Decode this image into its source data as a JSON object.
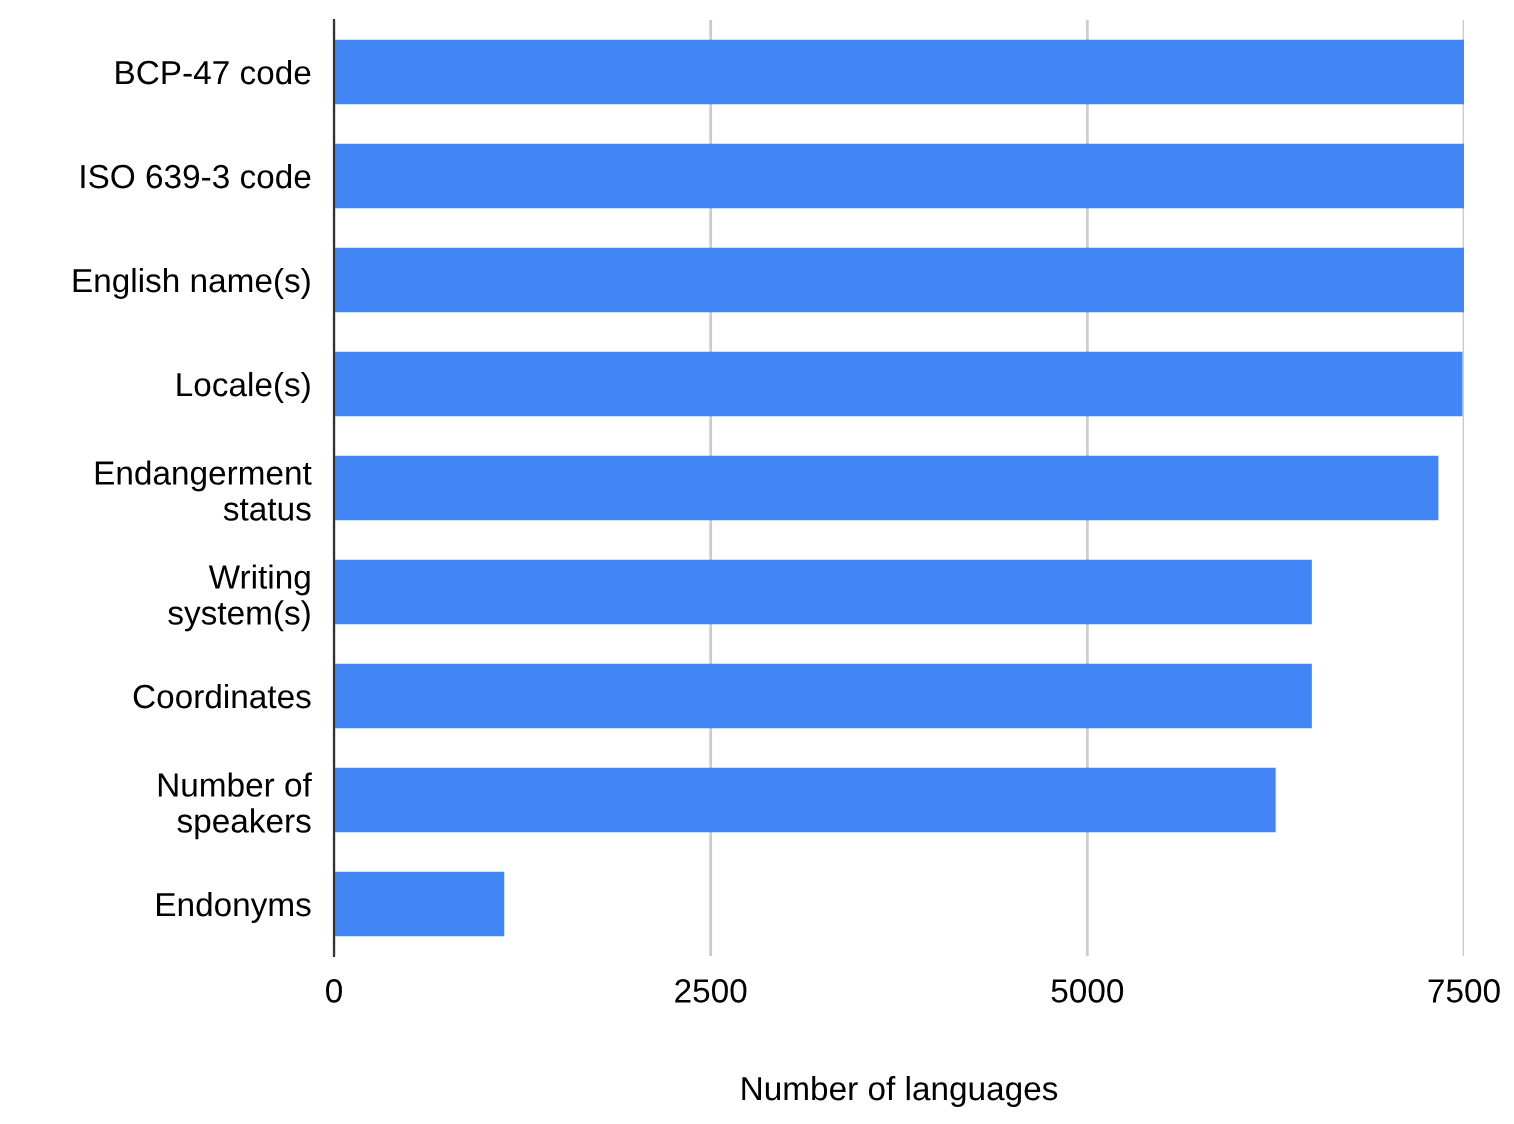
{
  "chart_data": {
    "type": "bar",
    "orientation": "horizontal",
    "xlabel": "Number of languages",
    "categories": [
      "BCP-47 code",
      "ISO 639-3 code",
      "English name(s)",
      "Locale(s)",
      "Endangerment\nstatus",
      "Writing\nsystem(s)",
      "Coordinates",
      "Number of\nspeakers",
      "Endonyms"
    ],
    "values": [
      7500,
      7500,
      7500,
      7490,
      7330,
      6490,
      6490,
      6250,
      1130
    ],
    "color": "#4285f4",
    "xlim": [
      0,
      7500
    ],
    "xticks": [
      0,
      2500,
      5000,
      7500
    ],
    "grid": "x",
    "legend": false
  }
}
